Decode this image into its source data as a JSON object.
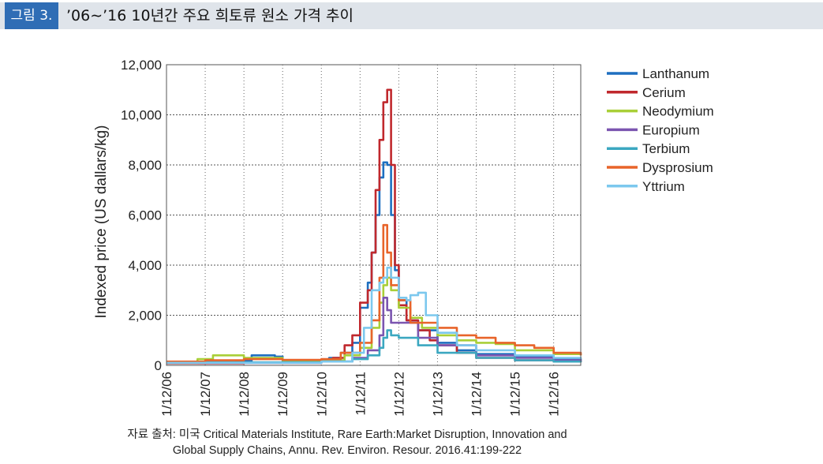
{
  "header": {
    "figure_label": "그림 3.",
    "title": "’06∼’16 10년간 주요 희토류 원소 가격 추이"
  },
  "source": {
    "line1": "자료 출처: 미국 Critical Materials Institute, Rare Earth:Market Disruption, Innovation and",
    "line2": "Global Supply Chains, Annu. Rev. Environ. Resour. 2016.41:199-222"
  },
  "colors": {
    "Lanthanum": "#1e6fc0",
    "Cerium": "#c0282d",
    "Neodymium": "#a9cf38",
    "Europium": "#7b55b0",
    "Terbium": "#3ba7c0",
    "Dysprosium": "#e8642a",
    "Yttrium": "#7cc8ee"
  },
  "chart_data": {
    "type": "line",
    "title": "",
    "xlabel": "",
    "ylabel": "Indexed price (US dallars/kg)",
    "ylim": [
      0,
      12000
    ],
    "yticks": [
      0,
      2000,
      4000,
      6000,
      8000,
      10000,
      12000
    ],
    "ytick_labels": [
      "0",
      "2,000",
      "4,000",
      "6,000",
      "8,000",
      "10,000",
      "12,000"
    ],
    "xlim": [
      2006,
      2016.7
    ],
    "xticks": [
      2006,
      2007,
      2008,
      2009,
      2010,
      2011,
      2012,
      2013,
      2014,
      2015,
      2016
    ],
    "xtick_labels": [
      "1/12/06",
      "1/12/07",
      "1/12/08",
      "1/12/09",
      "1/12/10",
      "1/12/11",
      "1/12/12",
      "1/12/13",
      "1/12/14",
      "1/12/15",
      "1/12/16"
    ],
    "grid": true,
    "legend_position": "right",
    "series": [
      {
        "name": "Lanthanum",
        "x": [
          2006,
          2007,
          2007.8,
          2008.2,
          2008.8,
          2009,
          2009.8,
          2010.2,
          2010.5,
          2010.8,
          2011.0,
          2011.2,
          2011.3,
          2011.4,
          2011.5,
          2011.6,
          2011.7,
          2011.8,
          2011.9,
          2012.0,
          2012.2,
          2012.5,
          2013,
          2013.5,
          2014,
          2015,
          2016,
          2016.7
        ],
        "y": [
          100,
          130,
          180,
          400,
          350,
          150,
          150,
          300,
          500,
          900,
          2300,
          3300,
          4500,
          6000,
          7500,
          8100,
          8000,
          6000,
          3800,
          2600,
          1800,
          1400,
          900,
          600,
          450,
          350,
          250,
          200
        ]
      },
      {
        "name": "Cerium",
        "x": [
          2006,
          2007,
          2008,
          2009,
          2010,
          2010.3,
          2010.6,
          2010.8,
          2011.0,
          2011.2,
          2011.3,
          2011.4,
          2011.5,
          2011.6,
          2011.7,
          2011.8,
          2011.9,
          2012.0,
          2012.2,
          2012.5,
          2012.8,
          2013,
          2013.5,
          2014,
          2015,
          2016,
          2016.7
        ],
        "y": [
          80,
          80,
          100,
          100,
          150,
          300,
          800,
          1200,
          2500,
          3000,
          4500,
          7000,
          9000,
          10500,
          11000,
          8000,
          4000,
          2400,
          1800,
          1400,
          1000,
          800,
          500,
          300,
          200,
          150,
          130
        ]
      },
      {
        "name": "Neodymium",
        "x": [
          2006,
          2006.8,
          2007.2,
          2008,
          2009,
          2010,
          2010.6,
          2011.0,
          2011.3,
          2011.5,
          2011.6,
          2011.7,
          2011.8,
          2012.0,
          2012.3,
          2012.6,
          2013,
          2013.5,
          2014,
          2014.5,
          2015,
          2016,
          2016.7
        ],
        "y": [
          100,
          250,
          400,
          300,
          200,
          200,
          400,
          700,
          1500,
          2500,
          3200,
          3500,
          3000,
          2300,
          1900,
          1500,
          1200,
          1000,
          900,
          850,
          600,
          450,
          400
        ]
      },
      {
        "name": "Europium",
        "x": [
          2006,
          2008,
          2010,
          2010.8,
          2011.2,
          2011.5,
          2011.6,
          2011.7,
          2011.8,
          2012.0,
          2012.5,
          2013,
          2014,
          2015,
          2016,
          2016.7
        ],
        "y": [
          100,
          100,
          150,
          300,
          600,
          1200,
          2700,
          2200,
          1700,
          1700,
          1100,
          800,
          400,
          300,
          200,
          150
        ]
      },
      {
        "name": "Terbium",
        "x": [
          2006,
          2008,
          2010,
          2010.8,
          2011.2,
          2011.5,
          2011.6,
          2011.7,
          2011.8,
          2012.0,
          2012.5,
          2013,
          2014,
          2015,
          2016,
          2016.7
        ],
        "y": [
          120,
          120,
          150,
          250,
          400,
          700,
          1100,
          1400,
          1200,
          1100,
          800,
          500,
          300,
          200,
          150,
          120
        ]
      },
      {
        "name": "Dysprosium",
        "x": [
          2006,
          2007,
          2008,
          2009,
          2010,
          2010.5,
          2011.0,
          2011.3,
          2011.5,
          2011.6,
          2011.7,
          2011.8,
          2012.0,
          2012.3,
          2012.6,
          2013,
          2013.5,
          2014,
          2014.5,
          2015,
          2015.5,
          2016,
          2016.7
        ],
        "y": [
          150,
          200,
          250,
          220,
          250,
          500,
          900,
          1800,
          3500,
          5600,
          4500,
          3200,
          2600,
          1700,
          1700,
          1500,
          1200,
          1100,
          900,
          800,
          700,
          500,
          400
        ]
      },
      {
        "name": "Yttrium",
        "x": [
          2006,
          2008,
          2010,
          2010.8,
          2011.1,
          2011.3,
          2011.5,
          2011.6,
          2011.7,
          2011.8,
          2012.0,
          2012.2,
          2012.3,
          2012.5,
          2012.7,
          2013,
          2013.5,
          2014,
          2015,
          2016,
          2016.7
        ],
        "y": [
          100,
          100,
          150,
          500,
          1500,
          3000,
          3300,
          3500,
          3900,
          3500,
          2700,
          2600,
          2800,
          2900,
          2000,
          1300,
          800,
          600,
          400,
          300,
          250
        ]
      }
    ]
  }
}
